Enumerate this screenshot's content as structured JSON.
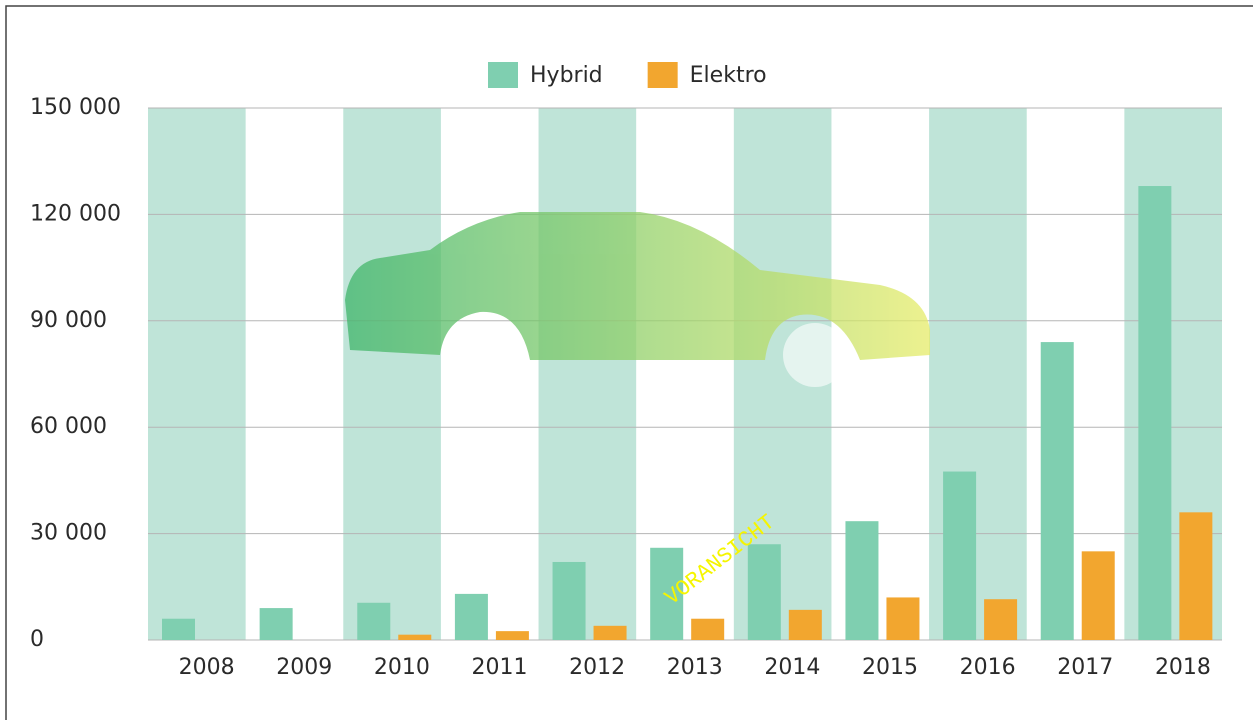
{
  "chart_data": {
    "type": "bar",
    "categories": [
      "2008",
      "2009",
      "2010",
      "2011",
      "2012",
      "2013",
      "2014",
      "2015",
      "2016",
      "2017",
      "2018"
    ],
    "series": [
      {
        "name": "Hybrid",
        "color": "#7fcfb0",
        "values": [
          6000,
          9000,
          10500,
          13000,
          22000,
          26000,
          27000,
          33500,
          47500,
          84000,
          128000
        ]
      },
      {
        "name": "Elektro",
        "color": "#f2a62f",
        "values": [
          0,
          0,
          1500,
          2500,
          4000,
          6000,
          8500,
          12000,
          11500,
          25000,
          36000
        ]
      }
    ],
    "ylim": [
      0,
      150000
    ],
    "yticks": [
      {
        "value": 0,
        "label": "0"
      },
      {
        "value": 30000,
        "label": "30 000"
      },
      {
        "value": 60000,
        "label": "60 000"
      },
      {
        "value": 90000,
        "label": "90 000"
      },
      {
        "value": 120000,
        "label": "120 000"
      },
      {
        "value": 150000,
        "label": "150 000"
      }
    ],
    "grid": true,
    "band_color": "#bfe4d8",
    "legend": "top",
    "watermark": "VORANSICHT"
  }
}
